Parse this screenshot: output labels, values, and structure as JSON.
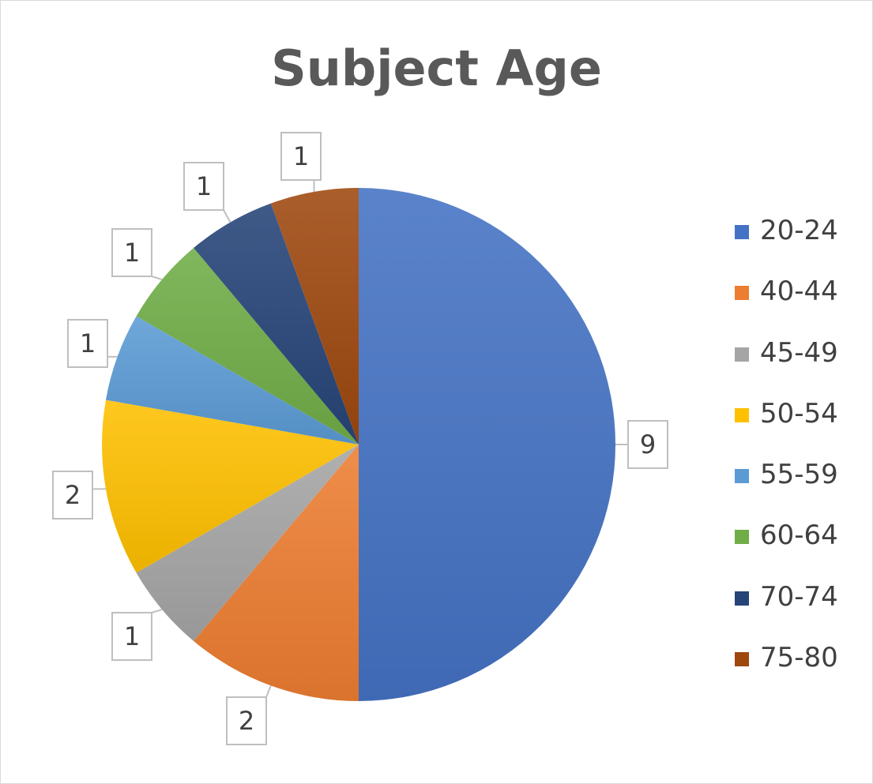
{
  "chart_data": {
    "type": "pie",
    "title": "Subject Age",
    "categories": [
      "20-24",
      "40-44",
      "45-49",
      "50-54",
      "55-59",
      "60-64",
      "70-74",
      "75-80"
    ],
    "values": [
      9,
      2,
      1,
      2,
      1,
      1,
      1,
      1
    ],
    "colors": [
      "#4472C4",
      "#ED7D31",
      "#A5A5A5",
      "#FFC000",
      "#5B9BD5",
      "#70AD47",
      "#264478",
      "#9E480E"
    ],
    "start_angle_deg": 0,
    "direction": "clockwise",
    "data_labels": "outside-callout",
    "legend_position": "right"
  }
}
